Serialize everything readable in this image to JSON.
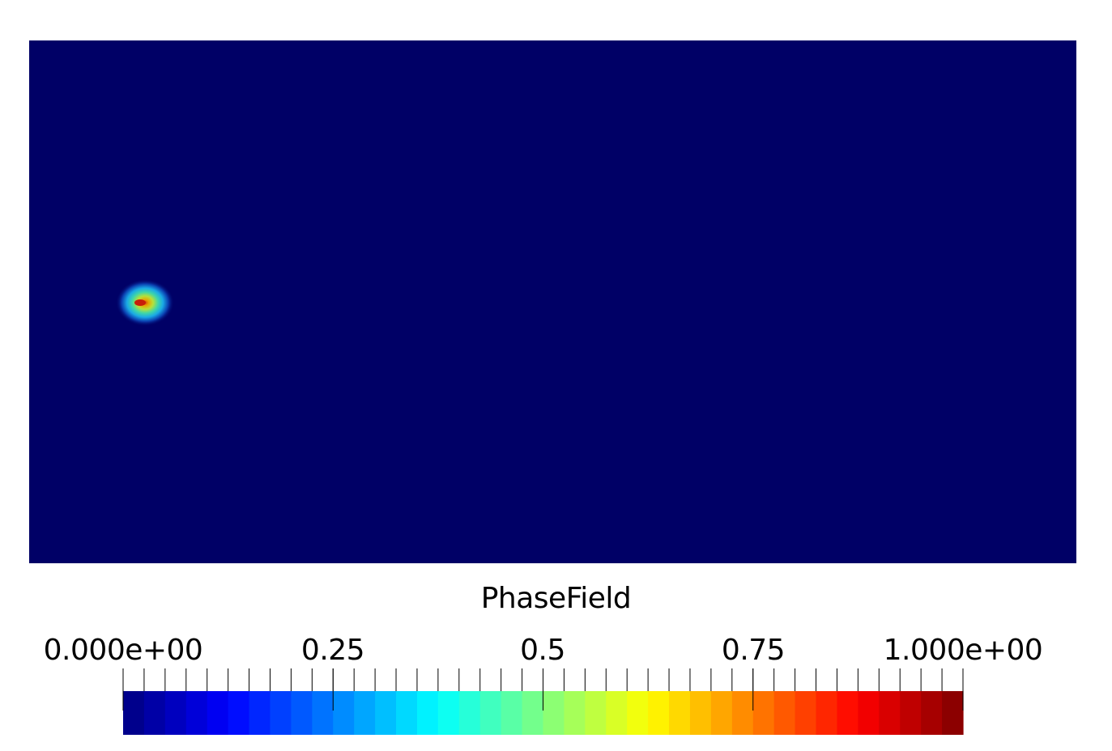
{
  "colorbar": {
    "title": "PhaseField",
    "tick_labels": [
      "0.000e+00",
      "0.25",
      "0.5",
      "0.75",
      "1.000e+00"
    ],
    "tick_values": [
      0,
      0.25,
      0.5,
      0.75,
      1.0
    ],
    "range": [
      0,
      1
    ],
    "colormap": "jet",
    "num_color_bands": 40,
    "minor_tick_count": 40
  },
  "field": {
    "background_value": 0.0,
    "background_color": "#000066",
    "blob": {
      "peak_value": 0.85
    }
  }
}
